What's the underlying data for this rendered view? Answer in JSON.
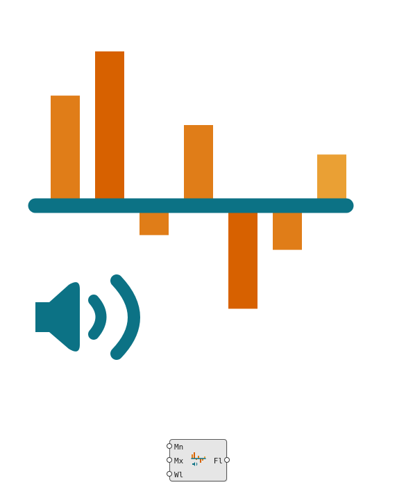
{
  "icon": {
    "name": "audio-frequency-bars-icon",
    "colors": {
      "baseline": "#0c7285",
      "speaker": "#0c7285",
      "bar_mid": "#e07d18",
      "bar_dark": "#d76100",
      "bar_light": "#eaa034"
    },
    "bars": [
      {
        "value": 0.7,
        "tone": "bar_mid"
      },
      {
        "value": 1.0,
        "tone": "bar_dark"
      },
      {
        "value": -0.2,
        "tone": "bar_mid"
      },
      {
        "value": 0.5,
        "tone": "bar_mid"
      },
      {
        "value": -0.7,
        "tone": "bar_dark"
      },
      {
        "value": -0.3,
        "tone": "bar_mid"
      },
      {
        "value": 0.3,
        "tone": "bar_light"
      }
    ]
  },
  "component": {
    "inputs": [
      "Mn",
      "Mx",
      "Wl"
    ],
    "outputs": [
      "Fl"
    ]
  }
}
